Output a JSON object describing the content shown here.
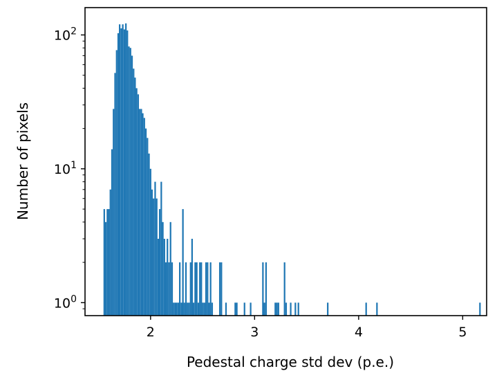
{
  "chart_data": {
    "type": "bar",
    "title": "",
    "xlabel": "Pedestal charge std dev (p.e.)",
    "ylabel": "Number of pixels",
    "xlim": [
      1.37,
      5.23
    ],
    "ylim": [
      0.8,
      160
    ],
    "yscale": "log",
    "grid": false,
    "legend": "none",
    "bar_color": "#1f77b4",
    "bin_width": 0.0148,
    "x_ticks": [
      {
        "value": 2,
        "label": "2"
      },
      {
        "value": 3,
        "label": "3"
      },
      {
        "value": 4,
        "label": "4"
      },
      {
        "value": 5,
        "label": "5"
      }
    ],
    "y_ticks": [
      {
        "value": 1,
        "base": "10",
        "exp": "0"
      },
      {
        "value": 10,
        "base": "10",
        "exp": "1"
      },
      {
        "value": 100,
        "base": "10",
        "exp": "2"
      }
    ],
    "x": [
      1.555,
      1.57,
      1.585,
      1.6,
      1.614,
      1.629,
      1.644,
      1.659,
      1.674,
      1.689,
      1.703,
      1.718,
      1.733,
      1.748,
      1.763,
      1.777,
      1.792,
      1.807,
      1.822,
      1.837,
      1.851,
      1.866,
      1.881,
      1.896,
      1.911,
      1.925,
      1.94,
      1.955,
      1.97,
      1.985,
      2.0,
      2.014,
      2.029,
      2.044,
      2.059,
      2.074,
      2.088,
      2.103,
      2.118,
      2.133,
      2.148,
      2.162,
      2.177,
      2.192,
      2.207,
      2.222,
      2.237,
      2.251,
      2.266,
      2.281,
      2.296,
      2.311,
      2.325,
      2.34,
      2.355,
      2.37,
      2.385,
      2.399,
      2.414,
      2.429,
      2.444,
      2.459,
      2.474,
      2.488,
      2.503,
      2.518,
      2.533,
      2.548,
      2.562,
      2.577,
      2.592,
      2.666,
      2.681,
      2.725,
      2.814,
      2.829,
      2.903,
      2.962,
      3.08,
      3.095,
      3.11,
      3.199,
      3.214,
      3.229,
      3.288,
      3.303,
      3.347,
      3.392,
      3.421,
      3.703,
      4.072,
      4.176,
      5.166
    ],
    "values": [
      5,
      4,
      5,
      5,
      7,
      14,
      28,
      52,
      77,
      103,
      120,
      112,
      120,
      110,
      122,
      108,
      82,
      80,
      70,
      56,
      48,
      40,
      36,
      28,
      28,
      26,
      24,
      20,
      17,
      13,
      10,
      7,
      6,
      8,
      6,
      3,
      5,
      8,
      4,
      3,
      2,
      3,
      2,
      4,
      2,
      1,
      1,
      1,
      1,
      2,
      1,
      5,
      1,
      2,
      1,
      1,
      2,
      3,
      1,
      2,
      2,
      1,
      2,
      2,
      1,
      1,
      2,
      2,
      1,
      2,
      1,
      2,
      2,
      1,
      1,
      1,
      1,
      1,
      2,
      1,
      2,
      1,
      1,
      1,
      2,
      1,
      1,
      1,
      1,
      1,
      1,
      1,
      1
    ]
  }
}
